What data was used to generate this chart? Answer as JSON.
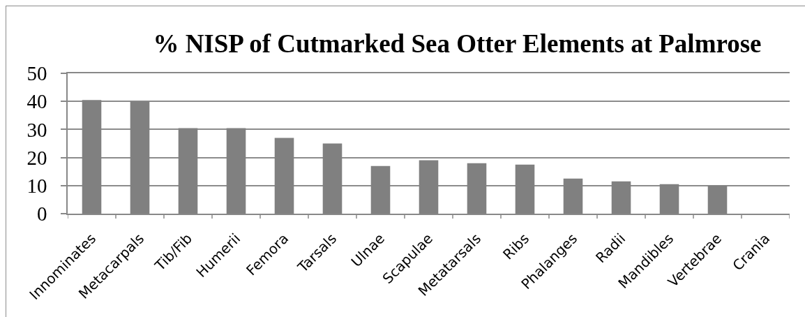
{
  "chart_data": {
    "type": "bar",
    "title": "% NISP of Cutmarked Sea Otter Elements at Palmrose",
    "categories": [
      "Innominates",
      "Metacarpals",
      "Tib/Fib",
      "Humerii",
      "Femora",
      "Tarsals",
      "Ulnae",
      "Scapulae",
      "Metatarsals",
      "Ribs",
      "Phalanges",
      "Radii",
      "Mandibles",
      "Vertebrae",
      "Crania"
    ],
    "values": [
      40.5,
      40,
      30.5,
      30.5,
      27,
      25,
      17,
      19,
      18,
      17.5,
      12.5,
      11.5,
      10.5,
      10,
      0
    ],
    "color": "#808080",
    "ylim": [
      0,
      50
    ],
    "yticks": [
      0,
      10,
      20,
      30,
      40,
      50
    ],
    "grid": "y"
  }
}
